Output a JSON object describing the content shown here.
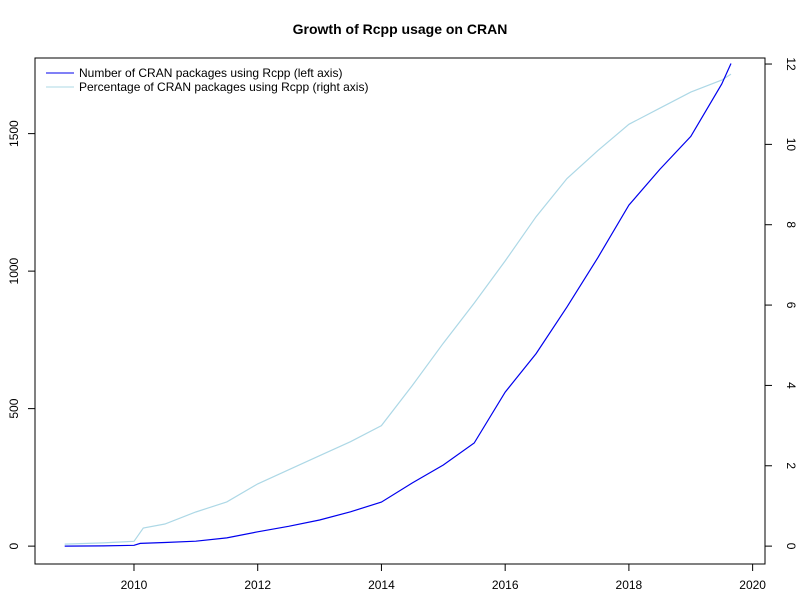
{
  "chart_data": {
    "type": "line",
    "title": "Growth of Rcpp usage on CRAN",
    "xlabel": "",
    "ylabel": "",
    "y2label": "",
    "xlim": [
      2008.4,
      2020.2
    ],
    "ylim": [
      -65,
      1775
    ],
    "y2lim": [
      -0.445,
      12.15
    ],
    "x_ticks": [
      2010,
      2012,
      2014,
      2016,
      2018,
      2020
    ],
    "y_ticks": [
      0,
      500,
      1000,
      1500
    ],
    "y2_ticks": [
      0,
      2,
      4,
      6,
      8,
      10,
      12
    ],
    "legend_position": "top-left",
    "grid": false,
    "series": [
      {
        "name": "Number of CRAN packages using Rcpp (left axis)",
        "axis": "left",
        "color": "#0000ee",
        "points": [
          [
            2008.88,
            0
          ],
          [
            2009.5,
            1
          ],
          [
            2010.0,
            3
          ],
          [
            2010.1,
            10
          ],
          [
            2010.5,
            13
          ],
          [
            2011.0,
            18
          ],
          [
            2011.5,
            30
          ],
          [
            2012.0,
            52
          ],
          [
            2012.5,
            72
          ],
          [
            2013.0,
            95
          ],
          [
            2013.5,
            125
          ],
          [
            2014.0,
            160
          ],
          [
            2014.5,
            230
          ],
          [
            2015.0,
            295
          ],
          [
            2015.5,
            375
          ],
          [
            2016.0,
            560
          ],
          [
            2016.5,
            700
          ],
          [
            2017.0,
            870
          ],
          [
            2017.5,
            1050
          ],
          [
            2018.0,
            1240
          ],
          [
            2018.5,
            1370
          ],
          [
            2019.0,
            1490
          ],
          [
            2019.5,
            1680
          ],
          [
            2019.65,
            1755
          ]
        ]
      },
      {
        "name": "Percentage of CRAN packages using Rcpp (right axis)",
        "axis": "right",
        "color": "#add8e6",
        "points": [
          [
            2008.88,
            0.05
          ],
          [
            2009.5,
            0.08
          ],
          [
            2010.0,
            0.12
          ],
          [
            2010.15,
            0.45
          ],
          [
            2010.5,
            0.55
          ],
          [
            2011.0,
            0.85
          ],
          [
            2011.5,
            1.1
          ],
          [
            2012.0,
            1.55
          ],
          [
            2012.5,
            1.9
          ],
          [
            2013.0,
            2.25
          ],
          [
            2013.5,
            2.6
          ],
          [
            2014.0,
            3.0
          ],
          [
            2014.5,
            4.0
          ],
          [
            2015.0,
            5.05
          ],
          [
            2015.5,
            6.05
          ],
          [
            2016.0,
            7.1
          ],
          [
            2016.5,
            8.2
          ],
          [
            2017.0,
            9.15
          ],
          [
            2017.5,
            9.85
          ],
          [
            2018.0,
            10.5
          ],
          [
            2018.5,
            10.9
          ],
          [
            2019.0,
            11.3
          ],
          [
            2019.5,
            11.6
          ],
          [
            2019.65,
            11.75
          ]
        ]
      }
    ]
  }
}
